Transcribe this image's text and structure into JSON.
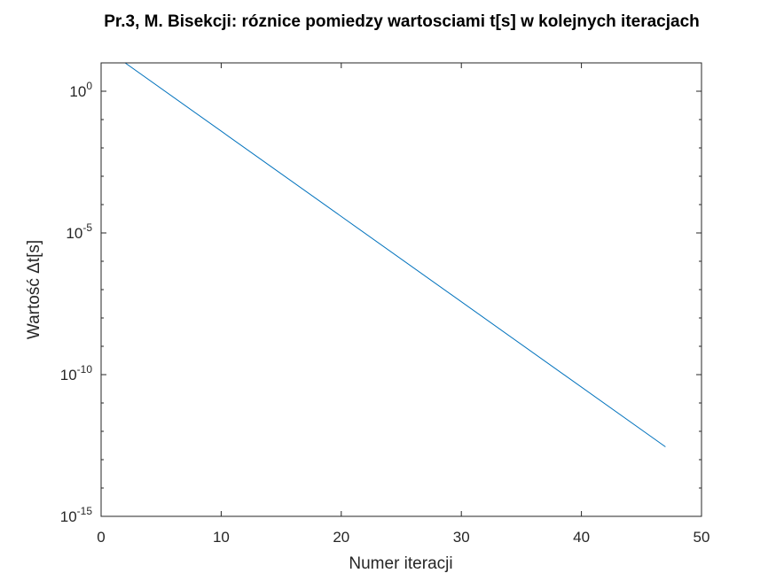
{
  "chart_data": {
    "type": "line",
    "title": "Pr.3, M. Bisekcji: róznice pomiedzy wartosciami t[s] w kolejnych iteracjach",
    "xlabel": "Numer iteracji",
    "ylabel": "Wartość Δt[s]",
    "xlim": [
      0,
      50
    ],
    "ylim": [
      1e-15,
      10
    ],
    "yscale": "log",
    "grid": false,
    "x_ticks": [
      0,
      10,
      20,
      30,
      40,
      50
    ],
    "x_tick_labels": [
      "0",
      "10",
      "20",
      "30",
      "40",
      "50"
    ],
    "y_ticks": [
      1e-15,
      1e-10,
      1e-05,
      1
    ],
    "y_tick_labels": [
      {
        "base": "10",
        "exp": "-15"
      },
      {
        "base": "10",
        "exp": "-10"
      },
      {
        "base": "10",
        "exp": "-5"
      },
      {
        "base": "10",
        "exp": "0"
      }
    ],
    "series": [
      {
        "color": "#0072BD",
        "x": [
          2,
          47
        ],
        "y": [
          10,
          2.84e-13
        ]
      }
    ]
  }
}
